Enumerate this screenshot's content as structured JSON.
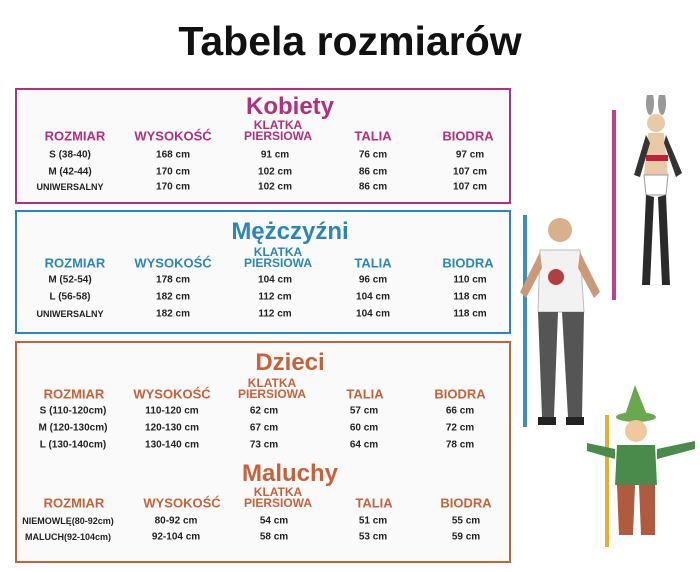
{
  "title": "Tabela rozmiarów",
  "colors": {
    "kobiety": "#b3307c",
    "mezczyzni": "#2a87b5",
    "dzieci": "#c5623a"
  },
  "tables": [
    {
      "key": "kobiety",
      "title": "Kobiety",
      "headers": [
        "ROZMIAR",
        "WYSOKOŚĆ",
        "KLATKA PIERSIOWA",
        "TALIA",
        "BIODRA"
      ],
      "rows": [
        [
          "S (38-40)",
          "168 cm",
          "91 cm",
          "76 cm",
          "97 cm"
        ],
        [
          "M (42-44)",
          "170 cm",
          "102 cm",
          "86 cm",
          "107 cm"
        ],
        [
          "UNIWERSALNY",
          "170 cm",
          "102 cm",
          "86 cm",
          "107 cm"
        ]
      ]
    },
    {
      "key": "mezczyzni",
      "title": "Mężczyźni",
      "headers": [
        "ROZMIAR",
        "WYSOKOŚĆ",
        "KLATKA PIERSIOWA",
        "TALIA",
        "BIODRA"
      ],
      "rows": [
        [
          "M (52-54)",
          "178 cm",
          "104 cm",
          "96 cm",
          "110 cm"
        ],
        [
          "L (56-58)",
          "182 cm",
          "112 cm",
          "104 cm",
          "118 cm"
        ],
        [
          "UNIWERSALNY",
          "182 cm",
          "112 cm",
          "104 cm",
          "118 cm"
        ]
      ]
    },
    {
      "key": "dzieci",
      "title": "Dzieci",
      "headers": [
        "ROZMIAR",
        "WYSOKOŚĆ",
        "KLATKA PIERSIOWA",
        "TALIA",
        "BIODRA"
      ],
      "rows": [
        [
          "S (110-120cm)",
          "110-120 cm",
          "62 cm",
          "57 cm",
          "66 cm"
        ],
        [
          "M (120-130cm)",
          "120-130 cm",
          "67 cm",
          "60 cm",
          "72 cm"
        ],
        [
          "L  (130-140cm)",
          "130-140 cm",
          "73 cm",
          "64 cm",
          "78 cm"
        ]
      ]
    },
    {
      "key": "maluchy",
      "title": "Maluchy",
      "headers": [
        "ROZMIAR",
        "WYSOKOŚĆ",
        "KLATKA PIERSIOWA",
        "TALIA",
        "BIODRA"
      ],
      "rows": [
        [
          "NIEMOWLĘ(80-92cm)",
          "80-92 cm",
          "54 cm",
          "51 cm",
          "55 cm"
        ],
        [
          "MALUCH(92-104cm)",
          "92-104 cm",
          "58 cm",
          "53 cm",
          "59 cm"
        ]
      ]
    }
  ]
}
